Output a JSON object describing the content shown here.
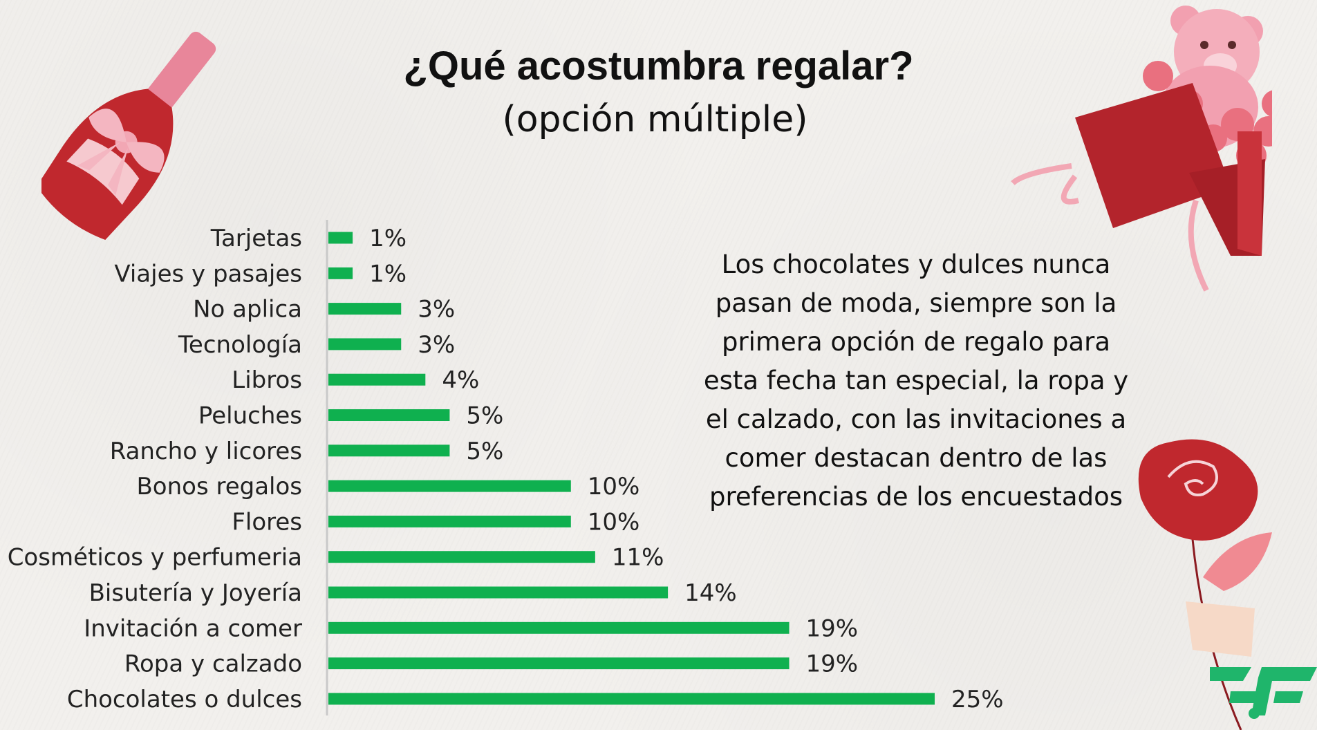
{
  "chart_data": {
    "type": "bar",
    "orientation": "horizontal",
    "title": "¿Qué acostumbra regalar?",
    "subtitle": "(opción múltiple)",
    "categories": [
      "Tarjetas",
      "Viajes y pasajes",
      "No aplica",
      "Tecnología",
      "Libros",
      "Peluches",
      "Rancho y licores",
      "Bonos regalos",
      "Flores",
      "Cosméticos y perfumeria",
      "Bisutería y Joyería",
      "Invitación a comer",
      "Ropa y calzado",
      "Chocolates o dulces"
    ],
    "values": [
      1,
      1,
      3,
      3,
      4,
      5,
      5,
      10,
      10,
      11,
      14,
      19,
      19,
      25
    ],
    "value_labels": [
      "1%",
      "1%",
      "3%",
      "3%",
      "4%",
      "5%",
      "5%",
      "10%",
      "10%",
      "11%",
      "14%",
      "19%",
      "19%",
      "25%"
    ],
    "xlim": [
      0,
      25
    ],
    "xlabel": "",
    "ylabel": "",
    "bar_color": "#0fb04f",
    "grid": false,
    "legend": "none"
  },
  "note": "Los chocolates y dulces nunca pasan de moda, siempre son la primera opción de regalo para esta fecha tan especial, la ropa y el calzado, con las invitaciones a comer destacan dentro de las preferencias de los encuestados",
  "decorations": {
    "top_left": "champagne-bottle-icon",
    "top_right": "teddy-bear-gift-box-icon",
    "bottom_right": "rose-icon",
    "logo": "brand-logo-icon"
  },
  "colors": {
    "accent_red": "#c0282e",
    "accent_pink": "#f2a7b4",
    "brand_green": "#1fb56b"
  }
}
